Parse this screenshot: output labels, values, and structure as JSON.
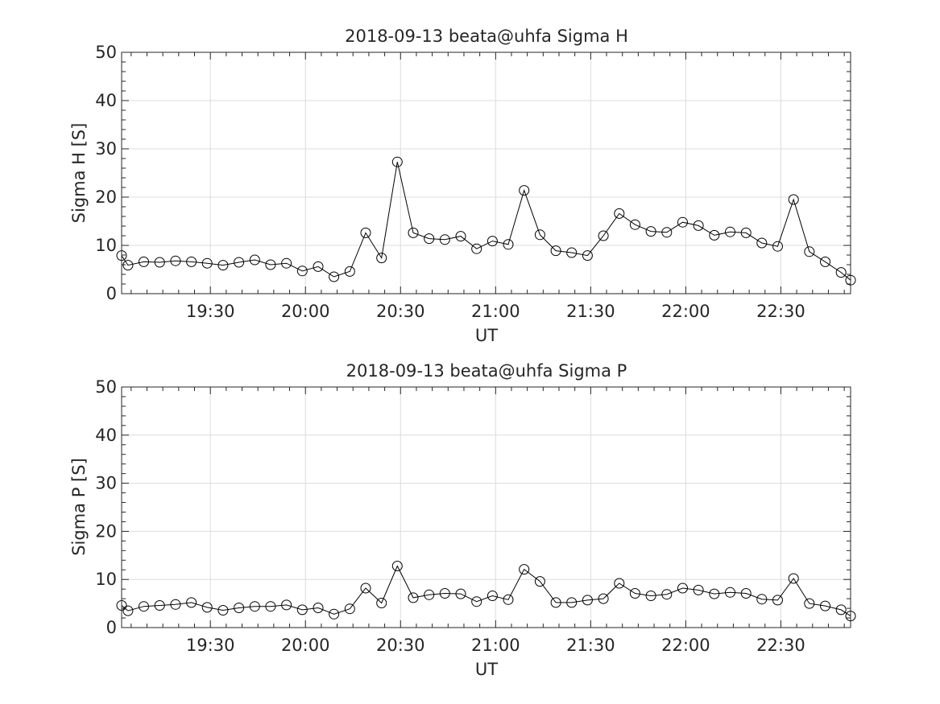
{
  "chart_data": [
    {
      "type": "line",
      "title": "2018-09-13  beata@uhfa Sigma H",
      "xlabel": "UT",
      "ylabel": "Sigma H [S]",
      "ylim": [
        0,
        50
      ],
      "yticks": [
        "0",
        "10",
        "20",
        "30",
        "40",
        "50"
      ],
      "xlim": [
        "19:02",
        "22:52"
      ],
      "xticks": [
        {
          "t": "19:30",
          "label": "19:30"
        },
        {
          "t": "20:00",
          "label": "20:00"
        },
        {
          "t": "20:30",
          "label": "20:30"
        },
        {
          "t": "21:00",
          "label": "21:00"
        },
        {
          "t": "21:30",
          "label": "21:30"
        },
        {
          "t": "22:00",
          "label": "22:00"
        },
        {
          "t": "22:30",
          "label": "22:30"
        }
      ],
      "grid": true,
      "marker": "circle",
      "x": [
        "19:02",
        "19:04",
        "19:09",
        "19:14",
        "19:19",
        "19:24",
        "19:29",
        "19:34",
        "19:39",
        "19:44",
        "19:49",
        "19:54",
        "19:59",
        "20:04",
        "20:09",
        "20:14",
        "20:19",
        "20:24",
        "20:29",
        "20:34",
        "20:39",
        "20:44",
        "20:49",
        "20:54",
        "20:59",
        "21:04",
        "21:09",
        "21:14",
        "21:19",
        "21:24",
        "21:29",
        "21:34",
        "21:39",
        "21:44",
        "21:49",
        "21:54",
        "21:59",
        "22:04",
        "22:09",
        "22:14",
        "22:19",
        "22:24",
        "22:29",
        "22:34",
        "22:39",
        "22:44",
        "22:49",
        "22:52"
      ],
      "values": [
        7.9,
        5.9,
        6.6,
        6.5,
        6.8,
        6.6,
        6.3,
        5.9,
        6.5,
        7.0,
        6.0,
        6.3,
        4.7,
        5.6,
        3.5,
        4.6,
        12.6,
        7.4,
        27.3,
        12.6,
        11.4,
        11.2,
        11.9,
        9.3,
        10.9,
        10.2,
        21.4,
        12.2,
        8.9,
        8.5,
        7.9,
        12.0,
        16.6,
        14.3,
        12.9,
        12.7,
        14.8,
        14.1,
        12.1,
        12.8,
        12.6,
        10.5,
        9.8,
        19.5,
        8.7,
        6.6,
        4.4,
        2.8
      ]
    },
    {
      "type": "line",
      "title": "2018-09-13  beata@uhfa Sigma P",
      "xlabel": "UT",
      "ylabel": "Sigma P [S]",
      "ylim": [
        0,
        50
      ],
      "yticks": [
        "0",
        "10",
        "20",
        "30",
        "40",
        "50"
      ],
      "xlim": [
        "19:02",
        "22:52"
      ],
      "xticks": [
        {
          "t": "19:30",
          "label": "19:30"
        },
        {
          "t": "20:00",
          "label": "20:00"
        },
        {
          "t": "20:30",
          "label": "20:30"
        },
        {
          "t": "21:00",
          "label": "21:00"
        },
        {
          "t": "21:30",
          "label": "21:30"
        },
        {
          "t": "22:00",
          "label": "22:00"
        },
        {
          "t": "22:30",
          "label": "22:30"
        }
      ],
      "grid": true,
      "marker": "circle",
      "x": [
        "19:02",
        "19:04",
        "19:09",
        "19:14",
        "19:19",
        "19:24",
        "19:29",
        "19:34",
        "19:39",
        "19:44",
        "19:49",
        "19:54",
        "19:59",
        "20:04",
        "20:09",
        "20:14",
        "20:19",
        "20:24",
        "20:29",
        "20:34",
        "20:39",
        "20:44",
        "20:49",
        "20:54",
        "20:59",
        "21:04",
        "21:09",
        "21:14",
        "21:19",
        "21:24",
        "21:29",
        "21:34",
        "21:39",
        "21:44",
        "21:49",
        "21:54",
        "21:59",
        "22:04",
        "22:09",
        "22:14",
        "22:19",
        "22:24",
        "22:29",
        "22:34",
        "22:39",
        "22:44",
        "22:49",
        "22:52"
      ],
      "values": [
        4.6,
        3.5,
        4.4,
        4.6,
        4.8,
        5.2,
        4.2,
        3.6,
        4.1,
        4.4,
        4.4,
        4.7,
        3.7,
        4.1,
        2.8,
        3.9,
        8.2,
        5.1,
        12.8,
        6.2,
        6.8,
        7.1,
        7.0,
        5.4,
        6.6,
        5.8,
        12.1,
        9.6,
        5.2,
        5.2,
        5.7,
        6.0,
        9.2,
        7.1,
        6.6,
        6.9,
        8.2,
        7.8,
        7.0,
        7.3,
        7.1,
        5.9,
        5.7,
        10.2,
        5.0,
        4.5,
        3.7,
        2.4
      ]
    }
  ]
}
